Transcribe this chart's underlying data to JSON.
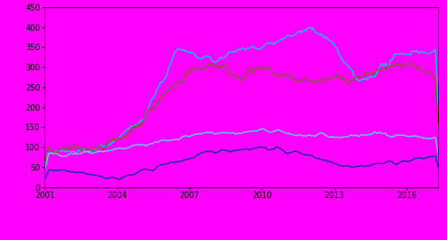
{
  "background_color": "#FF00FF",
  "ylim": [
    0,
    450
  ],
  "xlim": [
    2001.0,
    2017.3
  ],
  "yticks": [
    0,
    50,
    100,
    150,
    200,
    250,
    300,
    350,
    400,
    450
  ],
  "xticks": [
    2001,
    2004,
    2007,
    2010,
    2013,
    2016
  ],
  "series": {
    "Merredin": {
      "color": "#55DDFF",
      "linewidth": 1.0
    },
    "Mukinbudin": {
      "color": "#00308F",
      "linewidth": 1.0
    },
    "York - Beverley": {
      "color": "#6B6B00",
      "linewidth": 1.0
    },
    "Toodyay": {
      "color": "#00CCEE",
      "linewidth": 1.0
    }
  },
  "legend_fontsize": 7,
  "tick_fontsize": 7
}
